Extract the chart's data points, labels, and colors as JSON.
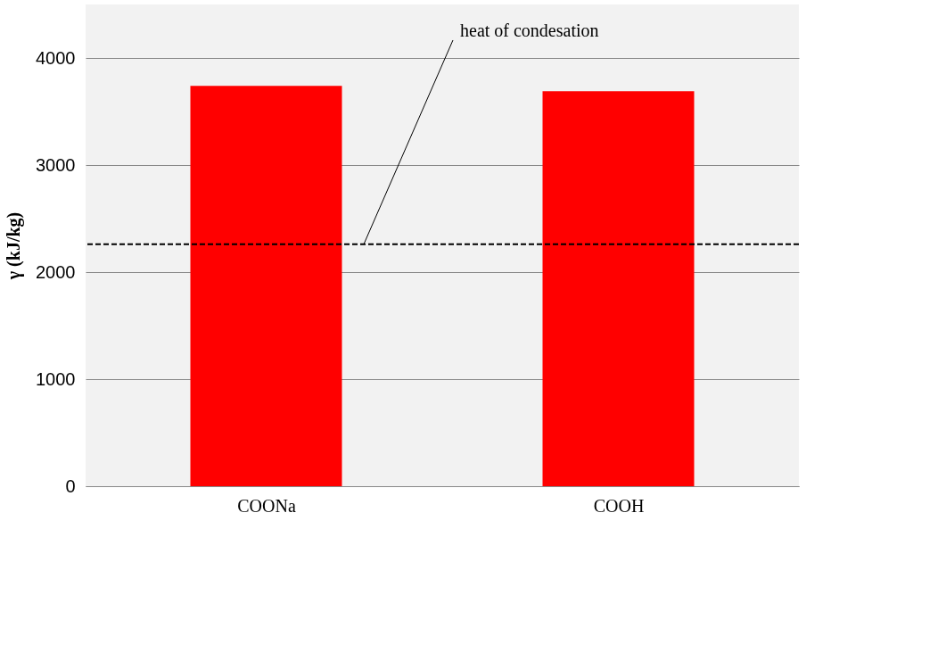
{
  "chart_data": {
    "type": "bar",
    "ylabel": "γ (kJ/kg)",
    "categories": [
      "COONa",
      "COOH"
    ],
    "series": [
      {
        "color": "#ff0000",
        "values": [
          3740,
          3690
        ]
      }
    ],
    "ylim": [
      0,
      4500
    ],
    "yticks": [
      0,
      1000,
      2000,
      3000,
      4000
    ],
    "grid": "y",
    "ref_lines": [
      {
        "axis": "y",
        "value": 2260,
        "label": "heat of condesation",
        "line_style": "dashed",
        "color": "#000000"
      }
    ]
  }
}
